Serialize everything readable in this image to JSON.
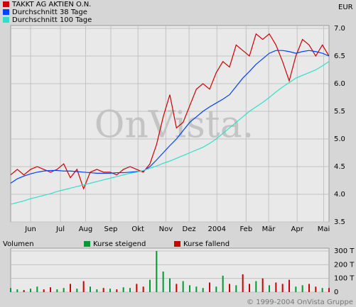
{
  "currency": "EUR",
  "watermark": "OnVista.",
  "copyright": "© 1999-2004 OnVista Gruppe",
  "chart_data": [
    {
      "type": "line",
      "x": [
        0,
        1,
        2,
        3,
        4,
        5,
        6,
        7,
        8,
        9,
        10,
        11,
        12,
        13,
        14,
        15,
        16,
        17,
        18,
        19,
        20,
        21,
        22,
        23,
        24,
        25,
        26,
        27,
        28,
        29,
        30,
        31,
        32,
        33,
        34,
        35,
        36,
        37,
        38,
        39,
        40,
        41,
        42,
        43,
        44,
        45,
        46,
        47,
        48
      ],
      "xlim": [
        0,
        48
      ],
      "xticks": [
        {
          "value": 3.0,
          "label": "Jun"
        },
        {
          "value": 7.5,
          "label": "Jul"
        },
        {
          "value": 11.3,
          "label": "Aug"
        },
        {
          "value": 15.1,
          "label": "Sep"
        },
        {
          "value": 19.2,
          "label": "Okt"
        },
        {
          "value": 23.4,
          "label": "Nov"
        },
        {
          "value": 26.9,
          "label": "Dez"
        },
        {
          "value": 31.1,
          "label": "2004"
        },
        {
          "value": 35.5,
          "label": "Feb"
        },
        {
          "value": 38.9,
          "label": "Mär"
        },
        {
          "value": 43.2,
          "label": "Apr"
        },
        {
          "value": 47.2,
          "label": "Mai"
        }
      ],
      "ylim": [
        3.5,
        7.0
      ],
      "yticks": [
        3.5,
        {
          "value": 4,
          "label": "4.0"
        },
        4.5,
        {
          "value": 5,
          "label": "5.0"
        },
        5.5,
        {
          "value": 6,
          "label": "6.0"
        },
        6.5,
        {
          "value": 7,
          "label": "7.0"
        }
      ],
      "grid": true,
      "legend": "top-left",
      "series": [
        {
          "name": "TAKKT AG AKTIEN O.N.",
          "color": "#cc0000",
          "values": [
            4.35,
            4.45,
            4.35,
            4.45,
            4.5,
            4.45,
            4.4,
            4.45,
            4.55,
            4.3,
            4.45,
            4.1,
            4.4,
            4.45,
            4.4,
            4.4,
            4.35,
            4.45,
            4.5,
            4.45,
            4.4,
            4.55,
            4.9,
            5.4,
            5.8,
            5.2,
            5.3,
            5.6,
            5.9,
            6.0,
            5.9,
            6.2,
            6.4,
            6.3,
            6.7,
            6.6,
            6.5,
            6.9,
            6.8,
            6.9,
            6.7,
            6.4,
            6.05,
            6.5,
            6.8,
            6.7,
            6.5,
            6.7,
            6.5
          ]
        },
        {
          "name": "Durchschnitt 38 Tage",
          "color": "#0040ff",
          "values": [
            4.2,
            4.28,
            4.33,
            4.37,
            4.4,
            4.42,
            4.43,
            4.43,
            4.42,
            4.42,
            4.41,
            4.4,
            4.39,
            4.38,
            4.38,
            4.38,
            4.39,
            4.39,
            4.4,
            4.41,
            4.42,
            4.5,
            4.62,
            4.75,
            4.88,
            5.0,
            5.15,
            5.3,
            5.4,
            5.5,
            5.58,
            5.65,
            5.72,
            5.8,
            5.95,
            6.1,
            6.22,
            6.35,
            6.45,
            6.55,
            6.6,
            6.6,
            6.58,
            6.55,
            6.58,
            6.6,
            6.58,
            6.55,
            6.5
          ]
        },
        {
          "name": "Durchschnitt 100 Tage",
          "color": "#33ddcc",
          "values": [
            3.82,
            3.85,
            3.88,
            3.92,
            3.95,
            3.98,
            4.01,
            4.05,
            4.08,
            4.11,
            4.14,
            4.17,
            4.2,
            4.23,
            4.26,
            4.29,
            4.32,
            4.35,
            4.38,
            4.4,
            4.43,
            4.47,
            4.51,
            4.56,
            4.6,
            4.65,
            4.7,
            4.75,
            4.8,
            4.85,
            4.92,
            5.0,
            5.1,
            5.2,
            5.3,
            5.4,
            5.5,
            5.58,
            5.66,
            5.75,
            5.85,
            5.94,
            6.02,
            6.1,
            6.15,
            6.2,
            6.25,
            6.32,
            6.4
          ]
        }
      ]
    },
    {
      "type": "bar",
      "title": "Volumen",
      "x": [
        0,
        1,
        2,
        3,
        4,
        5,
        6,
        7,
        8,
        9,
        10,
        11,
        12,
        13,
        14,
        15,
        16,
        17,
        18,
        19,
        20,
        21,
        22,
        23,
        24,
        25,
        26,
        27,
        28,
        29,
        30,
        31,
        32,
        33,
        34,
        35,
        36,
        37,
        38,
        39,
        40,
        41,
        42,
        43,
        44,
        45,
        46,
        47,
        48
      ],
      "xlim": [
        0,
        48
      ],
      "ylim": [
        0,
        300
      ],
      "yticks": [
        0,
        {
          "value": 100,
          "label": "100 T"
        },
        {
          "value": 200,
          "label": "200 T"
        },
        {
          "value": 300,
          "label": "300 T"
        }
      ],
      "grid": true,
      "series": [
        {
          "name": "Kurse steigend",
          "color": "#009933",
          "values": [
            30,
            20,
            null,
            25,
            40,
            null,
            null,
            20,
            30,
            null,
            25,
            null,
            40,
            20,
            null,
            25,
            null,
            35,
            30,
            null,
            null,
            90,
            300,
            150,
            100,
            null,
            80,
            50,
            40,
            30,
            null,
            40,
            120,
            null,
            50,
            null,
            null,
            80,
            null,
            50,
            null,
            null,
            null,
            40,
            50,
            null,
            null,
            30,
            null
          ]
        },
        {
          "name": "Kurse fallend",
          "color": "#cc0000",
          "values": [
            null,
            null,
            15,
            null,
            null,
            20,
            35,
            null,
            null,
            60,
            null,
            80,
            null,
            null,
            30,
            null,
            20,
            null,
            null,
            60,
            40,
            null,
            null,
            null,
            null,
            60,
            null,
            null,
            null,
            null,
            70,
            null,
            null,
            60,
            null,
            130,
            60,
            null,
            100,
            null,
            70,
            60,
            90,
            null,
            null,
            60,
            40,
            null,
            30
          ]
        }
      ]
    }
  ]
}
